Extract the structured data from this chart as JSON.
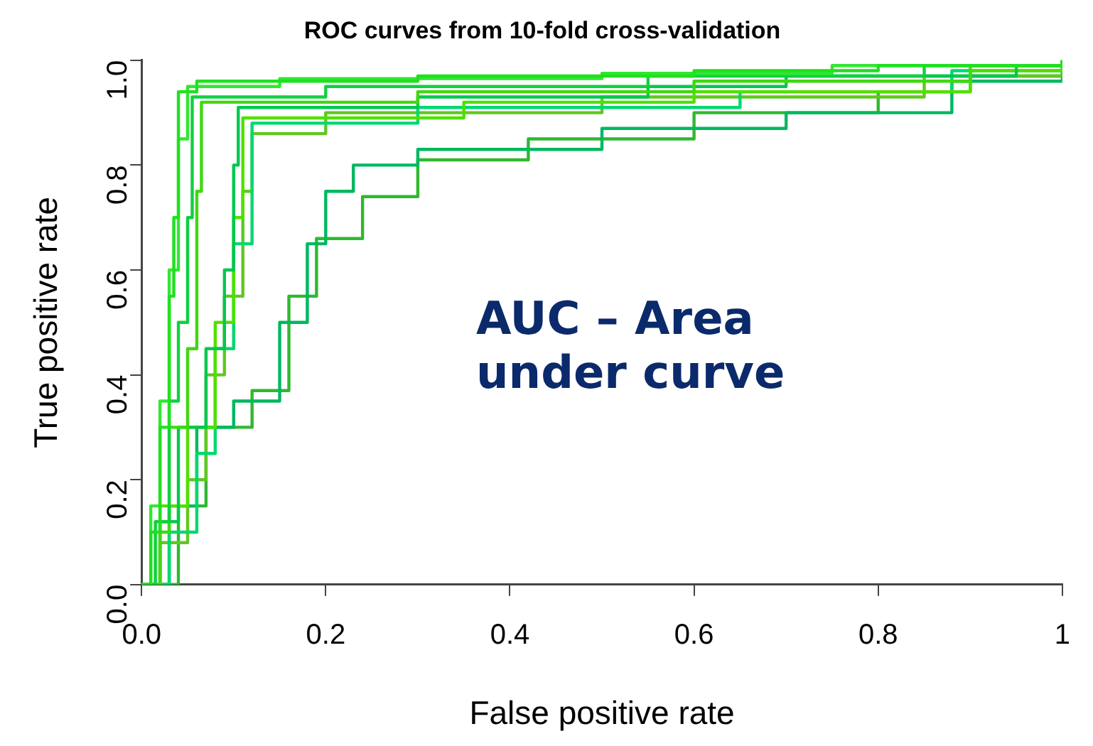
{
  "chart_data": {
    "type": "step",
    "title": "ROC curves from 10-fold cross-validation",
    "xlabel": "False positive rate",
    "ylabel": "True positive rate",
    "xlim": [
      0,
      1
    ],
    "ylim": [
      0,
      1
    ],
    "xticks": [
      {
        "value": 0,
        "label": "0.0"
      },
      {
        "value": 0.2,
        "label": "0.2"
      },
      {
        "value": 0.4,
        "label": "0.4"
      },
      {
        "value": 0.6,
        "label": "0.6"
      },
      {
        "value": 0.8,
        "label": "0.8"
      },
      {
        "value": 1,
        "label": "1"
      }
    ],
    "yticks": [
      {
        "value": 0,
        "label": "0.0"
      },
      {
        "value": 0.2,
        "label": "0.2"
      },
      {
        "value": 0.4,
        "label": "0.4"
      },
      {
        "value": 0.6,
        "label": "0.6"
      },
      {
        "value": 0.8,
        "label": "0.8"
      },
      {
        "value": 1,
        "label": "1.0"
      }
    ],
    "grid": false,
    "legend": false,
    "annotations": [
      "AUC – Area under curve"
    ],
    "series": [
      {
        "color": "#20e020",
        "x": [
          0,
          0.01,
          0.02,
          0.03,
          0.035,
          0.04,
          0.06,
          0.3,
          0.6,
          0.8,
          1
        ],
        "values": [
          0,
          0.1,
          0.3,
          0.55,
          0.7,
          0.94,
          0.96,
          0.97,
          0.98,
          0.99,
          1
        ]
      },
      {
        "color": "#30e830",
        "x": [
          0,
          0.01,
          0.02,
          0.03,
          0.04,
          0.05,
          0.15,
          0.5,
          0.75,
          1
        ],
        "values": [
          0,
          0.15,
          0.35,
          0.6,
          0.85,
          0.95,
          0.965,
          0.975,
          0.99,
          1
        ]
      },
      {
        "color": "#10d040",
        "x": [
          0,
          0.015,
          0.03,
          0.04,
          0.05,
          0.055,
          0.2,
          0.55,
          0.85,
          1
        ],
        "values": [
          0,
          0.12,
          0.35,
          0.5,
          0.7,
          0.93,
          0.95,
          0.97,
          0.99,
          1
        ]
      },
      {
        "color": "#40d810",
        "x": [
          0,
          0.02,
          0.03,
          0.05,
          0.06,
          0.065,
          0.3,
          0.6,
          0.9,
          1
        ],
        "values": [
          0,
          0.1,
          0.3,
          0.45,
          0.75,
          0.92,
          0.94,
          0.96,
          0.99,
          1
        ]
      },
      {
        "color": "#00c850",
        "x": [
          0,
          0.02,
          0.04,
          0.07,
          0.09,
          0.1,
          0.105,
          0.3,
          0.55,
          0.7,
          0.95,
          1
        ],
        "values": [
          0,
          0.12,
          0.3,
          0.45,
          0.6,
          0.8,
          0.91,
          0.93,
          0.95,
          0.97,
          0.99,
          1
        ]
      },
      {
        "color": "#50e000",
        "x": [
          0,
          0.02,
          0.05,
          0.08,
          0.1,
          0.11,
          0.35,
          0.6,
          0.9,
          1
        ],
        "values": [
          0,
          0.15,
          0.3,
          0.5,
          0.7,
          0.89,
          0.92,
          0.94,
          0.98,
          1
        ]
      },
      {
        "color": "#00d870",
        "x": [
          0,
          0.03,
          0.06,
          0.08,
          0.1,
          0.12,
          0.3,
          0.65,
          0.88,
          1
        ],
        "values": [
          0,
          0.1,
          0.25,
          0.45,
          0.65,
          0.88,
          0.91,
          0.94,
          0.98,
          1
        ]
      },
      {
        "color": "#60c820",
        "x": [
          0,
          0.02,
          0.05,
          0.07,
          0.09,
          0.11,
          0.12,
          0.2,
          0.5,
          0.85,
          1
        ],
        "values": [
          0,
          0.08,
          0.2,
          0.4,
          0.55,
          0.75,
          0.86,
          0.9,
          0.93,
          0.97,
          1
        ]
      },
      {
        "color": "#00b860",
        "x": [
          0,
          0.03,
          0.06,
          0.1,
          0.15,
          0.18,
          0.2,
          0.23,
          0.3,
          0.5,
          0.7,
          0.88,
          1
        ],
        "values": [
          0,
          0.15,
          0.3,
          0.35,
          0.5,
          0.65,
          0.75,
          0.8,
          0.83,
          0.87,
          0.9,
          0.96,
          1
        ]
      },
      {
        "color": "#30b830",
        "x": [
          0,
          0.04,
          0.07,
          0.12,
          0.16,
          0.19,
          0.24,
          0.3,
          0.42,
          0.6,
          0.8,
          0.9,
          1
        ],
        "values": [
          0,
          0.15,
          0.3,
          0.37,
          0.55,
          0.66,
          0.74,
          0.81,
          0.85,
          0.9,
          0.94,
          0.97,
          1
        ]
      }
    ]
  }
}
